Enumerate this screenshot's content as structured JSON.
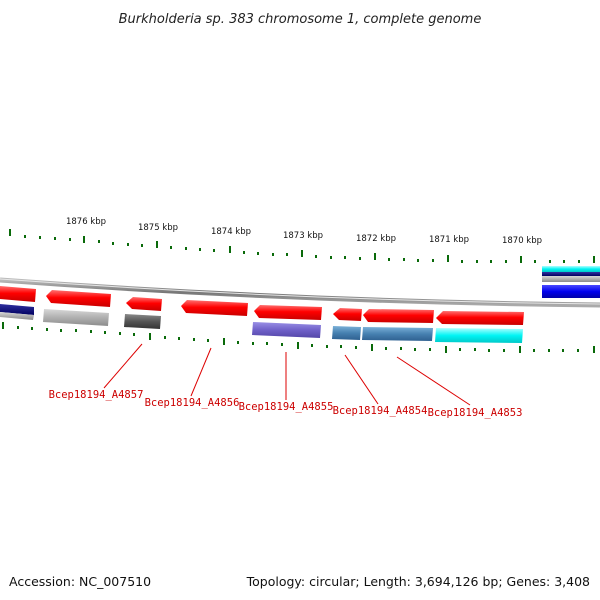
{
  "title": "Burkholderia sp. 383 chromosome 1, complete genome",
  "scale_ticks": [
    "1876 kbp",
    "1875 kbp",
    "1874 kbp",
    "1873 kbp",
    "1872 kbp",
    "1871 kbp",
    "1870 kbp"
  ],
  "genes": [
    {
      "label": "Bcep18194_A4857",
      "color": "#ff0000"
    },
    {
      "label": "Bcep18194_A4856",
      "color": "#ff0000"
    },
    {
      "label": "Bcep18194_A4855",
      "color": "#ff0000"
    },
    {
      "label": "Bcep18194_A4854",
      "color": "#ff0000"
    },
    {
      "label": "Bcep18194_A4853",
      "color": "#ff0000"
    }
  ],
  "colors": {
    "cds": "#ff0000",
    "backbone": "#888888",
    "ticks": "#006600",
    "labels": "#cc0000",
    "cog_blue": "#0000dd",
    "cog_navy": "#000080",
    "cog_cyan": "#00ffff",
    "cog_purple": "#7766cc",
    "cog_steel": "#4682b4",
    "cog_grey": "#aaaaaa",
    "cog_darkgrey": "#555555"
  },
  "footer": {
    "accession": "Accession: NC_007510",
    "summary": "Topology: circular; Length: 3,694,126 bp; Genes: 3,408"
  }
}
